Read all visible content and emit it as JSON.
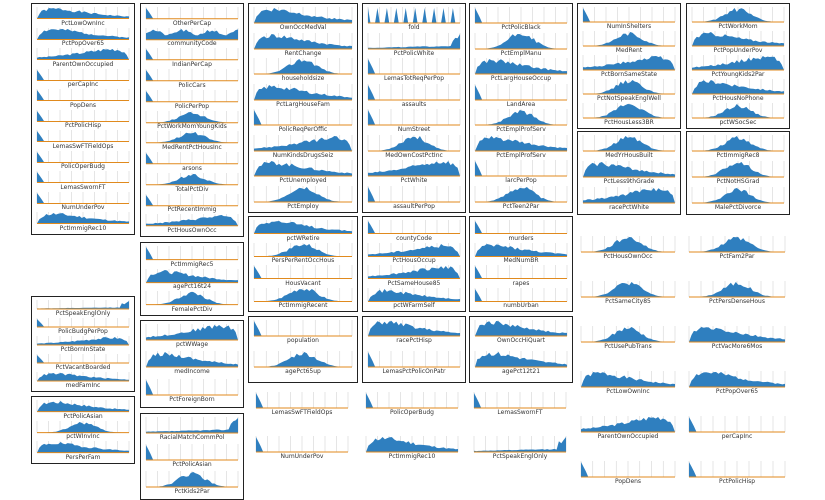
{
  "chart_data": {
    "type": "area",
    "description_kind": "grid of small histogram / density sparkline panels grouped by correlation clusters",
    "colors": {
      "fill": "#2f7fbf",
      "grid": "#d4d4d4",
      "baseline": "#e08a1e",
      "border": "#222222",
      "label": "#333333"
    },
    "grid": true,
    "panels": [
      {
        "name": "PctLowOwnInc",
        "shape": "rskew",
        "seed": 1
      },
      {
        "name": "PctPopOver65",
        "shape": "rskew",
        "seed": 2
      },
      {
        "name": "ParentOwnOccupied",
        "shape": "lskew",
        "seed": 3
      },
      {
        "name": "perCapInc",
        "shape": "spike",
        "seed": 4
      },
      {
        "name": "PopDens",
        "shape": "spike",
        "seed": 5
      },
      {
        "name": "PctPolicHisp",
        "shape": "spike",
        "seed": 6
      },
      {
        "name": "LemasSwFTFieldOps",
        "shape": "spike",
        "seed": 7
      },
      {
        "name": "PolicOperBudg",
        "shape": "spike",
        "seed": 8
      },
      {
        "name": "LemasSwornFT",
        "shape": "spike",
        "seed": 9
      },
      {
        "name": "NumUnderPov",
        "shape": "spike",
        "seed": 10
      },
      {
        "name": "PctImmigRec10",
        "shape": "rskew",
        "seed": 11
      },
      {
        "name": "PctSpeakEnglOnly",
        "shape": "rpeak",
        "seed": 12
      },
      {
        "name": "PolicBudgPerPop",
        "shape": "spike",
        "seed": 13
      },
      {
        "name": "PctBornInState",
        "shape": "lskew",
        "seed": 14
      },
      {
        "name": "PctVacantBoarded",
        "shape": "spike",
        "seed": 15
      },
      {
        "name": "medFamInc",
        "shape": "rskew",
        "seed": 16
      },
      {
        "name": "PctPolicAsian",
        "shape": "rskew",
        "seed": 17
      },
      {
        "name": "pctWInvInc",
        "shape": "normal",
        "seed": 18
      },
      {
        "name": "PersPerFam",
        "shape": "rskew",
        "seed": 19
      },
      {
        "name": "OtherPerCap",
        "shape": "spike",
        "seed": 20
      },
      {
        "name": "communityCode",
        "shape": "flat",
        "seed": 21
      },
      {
        "name": "IndianPerCap",
        "shape": "spike",
        "seed": 22
      },
      {
        "name": "PolicCars",
        "shape": "spike",
        "seed": 23
      },
      {
        "name": "PolicPerPop",
        "shape": "spike",
        "seed": 24
      },
      {
        "name": "PctWorkMomYoungKids",
        "shape": "normal",
        "seed": 25
      },
      {
        "name": "MedRentPctHousInc",
        "shape": "normal",
        "seed": 26
      },
      {
        "name": "arsons",
        "shape": "spike",
        "seed": 27
      },
      {
        "name": "TotalPctDiv",
        "shape": "normal",
        "seed": 28
      },
      {
        "name": "PctRecentImmig",
        "shape": "spike",
        "seed": 29
      },
      {
        "name": "PctHousOwnOcc",
        "shape": "lskew",
        "seed": 30
      },
      {
        "name": "PctImmigRec5",
        "shape": "spike",
        "seed": 31
      },
      {
        "name": "agePct16t24",
        "shape": "rskew",
        "seed": 32
      },
      {
        "name": "FemalePctDiv",
        "shape": "normal",
        "seed": 33
      },
      {
        "name": "pctWWage",
        "shape": "lskew",
        "seed": 34
      },
      {
        "name": "medIncome",
        "shape": "rskew",
        "seed": 35
      },
      {
        "name": "PctForeignBorn",
        "shape": "spike",
        "seed": 36
      },
      {
        "name": "RacialMatchCommPol",
        "shape": "rpeak",
        "seed": 37
      },
      {
        "name": "PctPolicAsian",
        "shape": "spike",
        "seed": 38
      },
      {
        "name": "PctKids2Par",
        "shape": "normal",
        "seed": 39
      },
      {
        "name": "OwnOccMedVal",
        "shape": "rskew",
        "seed": 40
      },
      {
        "name": "RentChange",
        "shape": "rskew",
        "seed": 41
      },
      {
        "name": "householdsize",
        "shape": "normal",
        "seed": 42
      },
      {
        "name": "PctLargHouseFam",
        "shape": "rskew",
        "seed": 43
      },
      {
        "name": "PolicReqPerOffic",
        "shape": "spike",
        "seed": 44
      },
      {
        "name": "NumKindsDrugsSeiz",
        "shape": "lskew",
        "seed": 45
      },
      {
        "name": "PctUnemployed",
        "shape": "rskew",
        "seed": 46
      },
      {
        "name": "PctEmploy",
        "shape": "normal",
        "seed": 47
      },
      {
        "name": "fold",
        "shape": "comb",
        "seed": 48
      },
      {
        "name": "PctPolicWhite",
        "shape": "rpeak",
        "seed": 49
      },
      {
        "name": "LemasTotReqPerPop",
        "shape": "spike",
        "seed": 50
      },
      {
        "name": "assaults",
        "shape": "spike",
        "seed": 51
      },
      {
        "name": "NumStreet",
        "shape": "spike",
        "seed": 52
      },
      {
        "name": "MedOwnCostPctInc",
        "shape": "normal",
        "seed": 53
      },
      {
        "name": "PctWhite",
        "shape": "lskew",
        "seed": 54
      },
      {
        "name": "assaultPerPop",
        "shape": "spike",
        "seed": 55
      },
      {
        "name": "PctPolicBlack",
        "shape": "spike",
        "seed": 56
      },
      {
        "name": "PctEmplManu",
        "shape": "normal",
        "seed": 57
      },
      {
        "name": "PctLargHouseOccup",
        "shape": "rskew",
        "seed": 58
      },
      {
        "name": "LandArea",
        "shape": "spike",
        "seed": 59
      },
      {
        "name": "PctEmplProfServ",
        "shape": "normal",
        "seed": 60
      },
      {
        "name": "PctEmplProfServ",
        "shape": "rskew",
        "seed": 61
      },
      {
        "name": "larcPerPop",
        "shape": "spike",
        "seed": 62
      },
      {
        "name": "PctTeen2Par",
        "shape": "normal",
        "seed": 63
      },
      {
        "name": "pctWRetire",
        "shape": "rskew",
        "seed": 64
      },
      {
        "name": "PersPerRentOccHous",
        "shape": "normal",
        "seed": 65
      },
      {
        "name": "HousVacant",
        "shape": "spike",
        "seed": 66
      },
      {
        "name": "PctImmigRecent",
        "shape": "normal",
        "seed": 67
      },
      {
        "name": "countyCode",
        "shape": "spike",
        "seed": 68
      },
      {
        "name": "PctHousOccup",
        "shape": "lskew",
        "seed": 69
      },
      {
        "name": "PctSameHouse85",
        "shape": "lskew",
        "seed": 70
      },
      {
        "name": "pctWFarmSelf",
        "shape": "rskew",
        "seed": 71
      },
      {
        "name": "murders",
        "shape": "spike",
        "seed": 72
      },
      {
        "name": "MedNumBR",
        "shape": "rskew",
        "seed": 73
      },
      {
        "name": "rapes",
        "shape": "spike",
        "seed": 74
      },
      {
        "name": "numbUrban",
        "shape": "spike",
        "seed": 75
      },
      {
        "name": "population",
        "shape": "spike",
        "seed": 76
      },
      {
        "name": "agePct65up",
        "shape": "normal",
        "seed": 77
      },
      {
        "name": "racePctHisp",
        "shape": "rskew",
        "seed": 78
      },
      {
        "name": "LemasPctPolicOnPatr",
        "shape": "spike",
        "seed": 79
      },
      {
        "name": "OwnOccHiQuart",
        "shape": "rskew",
        "seed": 80
      },
      {
        "name": "agePct12t21",
        "shape": "rskew",
        "seed": 81
      },
      {
        "name": "NumInShelters",
        "shape": "spike",
        "seed": 82
      },
      {
        "name": "MedRent",
        "shape": "normal",
        "seed": 83
      },
      {
        "name": "PctBornSameState",
        "shape": "lskew",
        "seed": 84
      },
      {
        "name": "PctNotSpeakEnglWell",
        "shape": "normal",
        "seed": 85
      },
      {
        "name": "PctHousLess3BR",
        "shape": "normal",
        "seed": 86
      },
      {
        "name": "PctWorkMom",
        "shape": "normal",
        "seed": 87
      },
      {
        "name": "PctPopUnderPov",
        "shape": "rskew",
        "seed": 88
      },
      {
        "name": "PctYoungKids2Par",
        "shape": "lskew",
        "seed": 89
      },
      {
        "name": "PctHousNoPhone",
        "shape": "rskew",
        "seed": 90
      },
      {
        "name": "pctWSocSec",
        "shape": "normal",
        "seed": 91
      },
      {
        "name": "MedYrHousBuilt",
        "shape": "normal",
        "seed": 92
      },
      {
        "name": "PctLess9thGrade",
        "shape": "rskew",
        "seed": 93
      },
      {
        "name": "racePctWhite",
        "shape": "lskew",
        "seed": 94
      },
      {
        "name": "PctImmigRec8",
        "shape": "normal",
        "seed": 95
      },
      {
        "name": "PctNotHSGrad",
        "shape": "normal",
        "seed": 96
      },
      {
        "name": "MalePctDivorce",
        "shape": "normal",
        "seed": 97
      },
      {
        "name": "PctHousOwnOcc",
        "shape": "normal",
        "seed": 98
      },
      {
        "name": "PctFam2Par",
        "shape": "normal",
        "seed": 99
      },
      {
        "name": "PctSameCity85",
        "shape": "normal",
        "seed": 100
      },
      {
        "name": "PctPersDenseHous",
        "shape": "normal",
        "seed": 101
      },
      {
        "name": "PctUsePubTrans",
        "shape": "normal",
        "seed": 102
      },
      {
        "name": "PctVacMore6Mos",
        "shape": "rskew",
        "seed": 103
      }
    ]
  }
}
